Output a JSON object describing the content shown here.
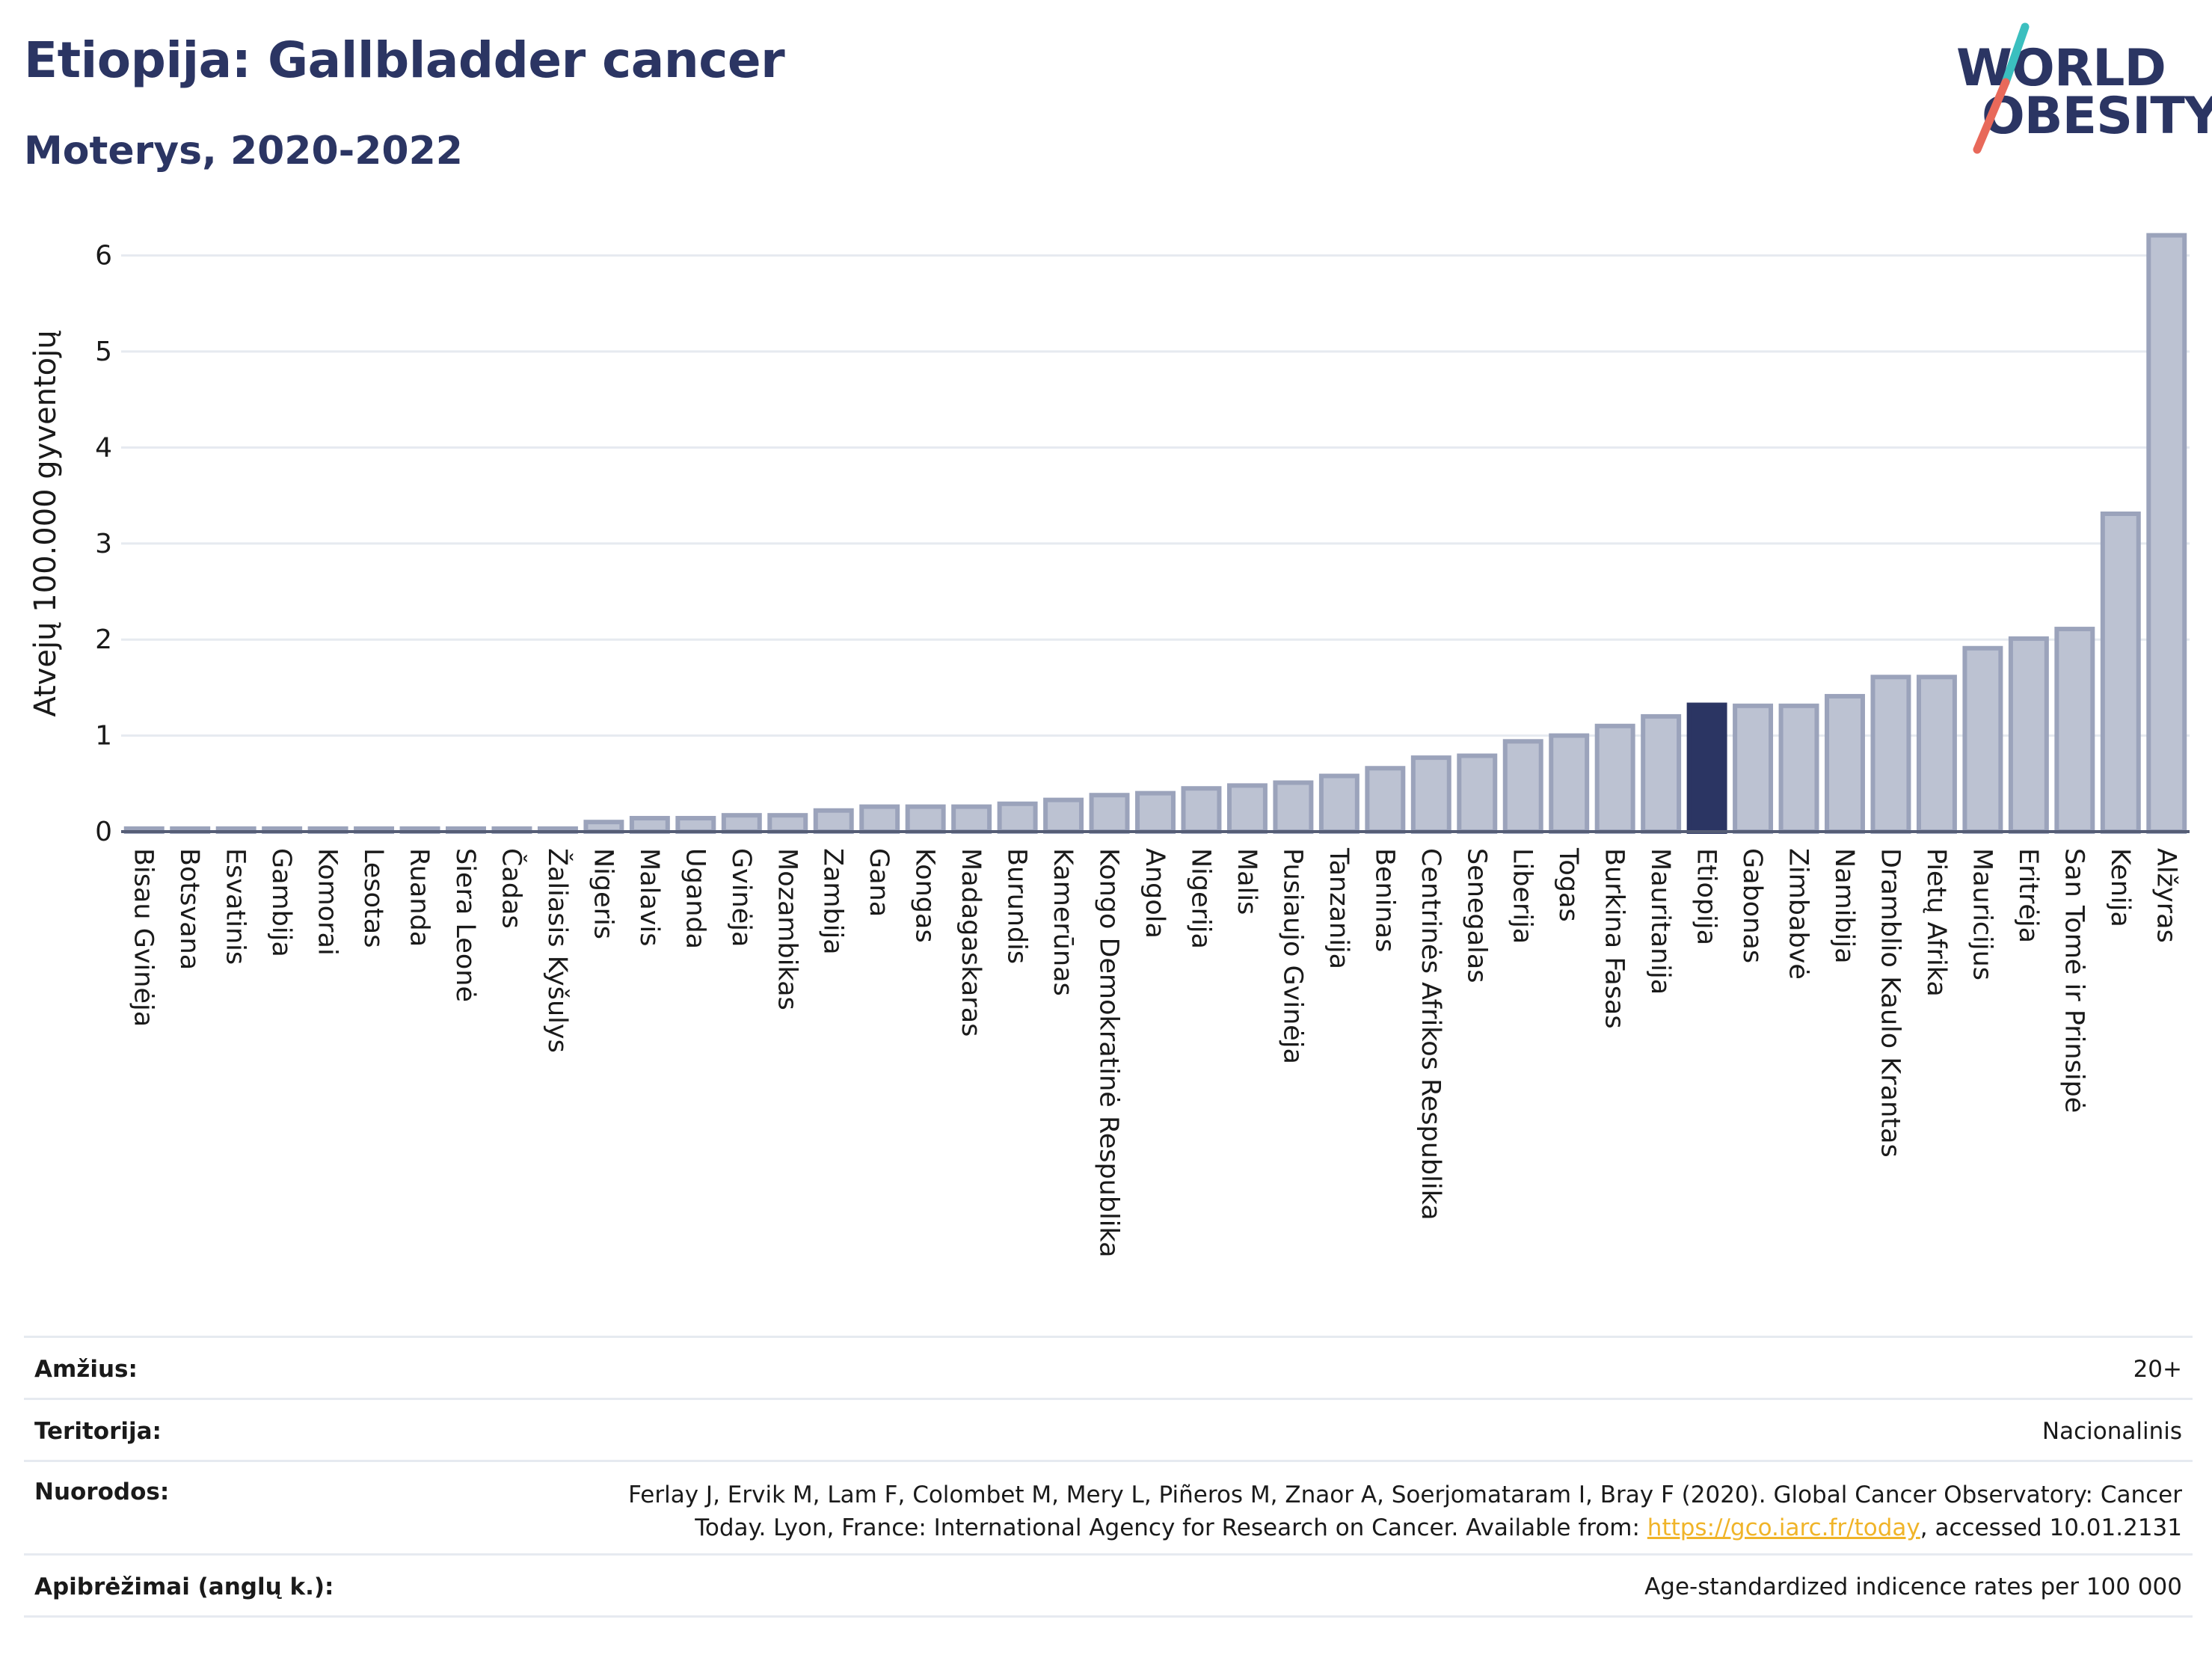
{
  "header": {
    "title": "Etiopija: Gallbladder cancer",
    "subtitle": "Moterys, 2020-2022"
  },
  "logo": {
    "line1": "WORLD",
    "line2": "OBESITY",
    "slash_color_top": "#3bbfbf",
    "slash_color_bottom": "#e8695a"
  },
  "colors": {
    "bar_fill": "#bcc2d2",
    "bar_stroke": "#9ba3bb",
    "highlight_fill": "#2b3563",
    "text": "#2b3563",
    "grid": "#e6eaf0"
  },
  "chart_data": {
    "type": "bar",
    "title": "Etiopija: Gallbladder cancer",
    "subtitle": "Moterys, 2020-2022",
    "ylabel": "Atvejų 100.000 gyventojų",
    "xlabel": "",
    "ylim": [
      0,
      6.2
    ],
    "yticks": [
      "0",
      "1",
      "2",
      "3",
      "4",
      "5",
      "6"
    ],
    "grid": true,
    "highlight": "Etiopija",
    "categories": [
      "Bisau Gvinėja",
      "Botsvana",
      "Esvatinis",
      "Gambija",
      "Komorai",
      "Lesotas",
      "Ruanda",
      "Siera Leonė",
      "Čadas",
      "Žaliasis Kyšulys",
      "Nigeris",
      "Malavis",
      "Uganda",
      "Gvinėja",
      "Mozambikas",
      "Zambija",
      "Gana",
      "Kongas",
      "Madagaskaras",
      "Burundis",
      "Kamerūnas",
      "Kongo Demokratinė Respublika",
      "Angola",
      "Nigerija",
      "Malis",
      "Pusiaujo Gvinėja",
      "Tanzanija",
      "Beninas",
      "Centrinės Afrikos Respublika",
      "Senegalas",
      "Liberija",
      "Togas",
      "Burkina Fasas",
      "Mauritanija",
      "Etiopija",
      "Gabonas",
      "Zimbabvė",
      "Namibija",
      "Dramblio Kaulo Krantas",
      "Pietų Afrika",
      "Mauricijus",
      "Eritrėja",
      "San Tomė ir Prinsipė",
      "Kenija",
      "Alžyras"
    ],
    "values": [
      0.02,
      0.02,
      0.02,
      0.02,
      0.02,
      0.02,
      0.02,
      0.02,
      0.02,
      0.02,
      0.1,
      0.14,
      0.14,
      0.17,
      0.17,
      0.22,
      0.26,
      0.26,
      0.26,
      0.29,
      0.33,
      0.38,
      0.4,
      0.45,
      0.48,
      0.51,
      0.58,
      0.66,
      0.77,
      0.79,
      0.94,
      1.0,
      1.1,
      1.2,
      1.32,
      1.31,
      1.31,
      1.41,
      1.61,
      1.61,
      1.91,
      2.01,
      2.11,
      3.31,
      6.21
    ]
  },
  "info": {
    "rows": [
      {
        "label": "Amžius:",
        "value": "20+"
      },
      {
        "label": "Teritorija:",
        "value": "Nacionalinis"
      },
      {
        "label": "Nuorodos:",
        "value_line1": "Ferlay J, Ervik M, Lam F, Colombet M, Mery L, Piñeros M, Znaor A, Soerjomataram I, Bray F (2020). Global Cancer Observatory: Cancer",
        "value_line2_pre": "Today. Lyon, France: International Agency for Research on Cancer. Available from: ",
        "value_link": "https://gco.iarc.fr/today",
        "value_line2_post": ", accessed 10.01.2131"
      },
      {
        "label": "Apibrėžimai (anglų k.):",
        "value": "Age-standardized indicence rates per 100 000"
      }
    ]
  }
}
